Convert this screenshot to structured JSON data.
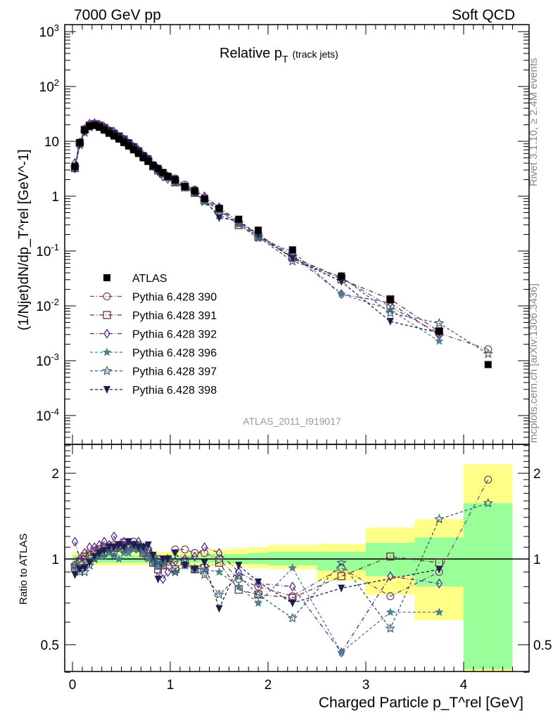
{
  "header": {
    "left": "7000 GeV pp",
    "right": "Soft QCD"
  },
  "side": {
    "rivet": "Rivet 3.1.10, ≥ 2.4M events",
    "mcplots": "mcplots.cern.ch [arXiv:1306.3436]"
  },
  "chart_data": {
    "type": "scatter",
    "title": "Relative p_T (track jets)",
    "title_main": "Relative p",
    "title_sub": "T",
    "title_small": "(track jets)",
    "xlabel": "Charged Particle p_T^rel [GeV]",
    "ylabel": "(1/Njet)dN/dp_T^rel [GeV^-1]",
    "ratio_ylabel": "Ratio to ATLAS",
    "watermark": "ATLAS_2011_I919017",
    "xlim": [
      -0.1,
      4.6
    ],
    "ylim_log": [
      3e-05,
      1350
    ],
    "ratio_ylim": [
      0.4,
      2.53
    ],
    "x_ticks": [
      "0",
      "1",
      "2",
      "3",
      "4"
    ],
    "y_ticks": [
      "10^3",
      "10^2",
      "10",
      "1",
      "10^-1",
      "10^-2",
      "10^-3",
      "10^-4"
    ],
    "ratio_ticks": [
      "2",
      "1",
      "0.5"
    ],
    "legend_position": "middle-left",
    "x": [
      0.025,
      0.075,
      0.125,
      0.175,
      0.225,
      0.275,
      0.325,
      0.375,
      0.425,
      0.475,
      0.525,
      0.575,
      0.625,
      0.675,
      0.725,
      0.775,
      0.825,
      0.875,
      0.925,
      0.975,
      1.05,
      1.15,
      1.25,
      1.35,
      1.5,
      1.7,
      1.9,
      2.25,
      2.75,
      3.25,
      3.75,
      4.25
    ],
    "reference": {
      "name": "ATLAS",
      "color": "#000000",
      "values": [
        3.5,
        9.5,
        16,
        19,
        19.5,
        18,
        16,
        14,
        12.5,
        11,
        9.5,
        8.2,
        7,
        6,
        5,
        4.3,
        3.6,
        3.2,
        2.7,
        2.3,
        1.95,
        1.5,
        1.25,
        0.9,
        0.6,
        0.38,
        0.24,
        0.105,
        0.035,
        0.013,
        0.0035,
        0.00085
      ]
    },
    "series": [
      {
        "name": "Pythia 6.428 390",
        "color": "#7a4a6a",
        "marker": "circle",
        "dash": "6,3,1,3",
        "ratio": [
          0.95,
          0.97,
          1.0,
          1.02,
          1.05,
          1.08,
          1.1,
          1.1,
          1.12,
          1.1,
          1.12,
          1.1,
          1.15,
          1.12,
          1.1,
          1.08,
          1.02,
          1.0,
          0.97,
          1.0,
          1.08,
          1.08,
          1.05,
          1.05,
          1.0,
          0.85,
          0.8,
          0.74,
          0.93,
          0.74,
          0.9,
          1.9
        ]
      },
      {
        "name": "Pythia 6.428 391",
        "color": "#6a3040",
        "marker": "square",
        "dash": "6,3,1,3",
        "ratio": [
          0.93,
          0.98,
          1.02,
          1.03,
          1.06,
          1.08,
          1.1,
          1.1,
          1.1,
          1.12,
          1.14,
          1.1,
          1.12,
          1.1,
          1.05,
          1.02,
          0.97,
          0.92,
          0.95,
          0.98,
          0.92,
          0.98,
          0.92,
          0.93,
          0.97,
          0.78,
          0.75,
          0.73,
          0.87,
          1.02,
          0.97,
          null
        ]
      },
      {
        "name": "Pythia 6.428 392",
        "color": "#5a2a8a",
        "marker": "diamond",
        "dash": "6,3,1,3",
        "ratio": [
          1.15,
          1.0,
          1.05,
          1.1,
          1.1,
          1.12,
          1.15,
          1.12,
          1.2,
          1.1,
          1.15,
          1.12,
          1.1,
          1.15,
          1.05,
          1.08,
          0.98,
          0.95,
          0.85,
          0.9,
          0.98,
          1.0,
          1.02,
          1.1,
          1.05,
          0.9,
          0.82,
          0.8,
          0.47,
          0.87,
          0.82,
          null
        ]
      },
      {
        "name": "Pythia 6.428 396",
        "color": "#4a8090",
        "marker": "star-small",
        "dash": "4,3",
        "ratio": [
          0.93,
          0.92,
          0.95,
          0.98,
          1.0,
          1.02,
          1.02,
          1.05,
          1.03,
          1.0,
          1.05,
          1.05,
          1.08,
          1.1,
          1.05,
          1.0,
          0.97,
          0.95,
          0.97,
          1.0,
          0.9,
          0.95,
          0.93,
          0.92,
          0.9,
          0.8,
          0.7,
          0.93,
          0.47,
          0.65,
          0.65,
          null
        ]
      },
      {
        "name": "Pythia 6.428 397",
        "color": "#3a5a70",
        "marker": "star",
        "dash": "4,3",
        "ratio": [
          0.95,
          0.9,
          0.9,
          0.95,
          1.0,
          1.05,
          1.05,
          1.08,
          1.05,
          1.1,
          1.08,
          1.1,
          1.12,
          1.08,
          1.1,
          1.05,
          1.0,
          0.98,
          0.95,
          1.0,
          0.9,
          0.95,
          0.92,
          0.88,
          0.75,
          0.87,
          0.75,
          0.62,
          0.97,
          0.57,
          1.38,
          1.57
        ]
      },
      {
        "name": "Pythia 6.428 398",
        "color": "#1e1e50",
        "marker": "triangle-down",
        "dash": "4,3",
        "ratio": [
          0.88,
          0.92,
          0.93,
          0.97,
          1.02,
          1.05,
          1.07,
          1.1,
          1.1,
          1.12,
          1.1,
          1.15,
          1.12,
          1.1,
          1.1,
          1.12,
          1.03,
          0.85,
          1.0,
          1.0,
          1.05,
          0.95,
          0.92,
          0.97,
          0.67,
          0.95,
          0.83,
          0.7,
          0.79,
          0.4,
          0.92,
          null
        ]
      }
    ],
    "uncertainty_bands": {
      "edges": [
        0,
        1.4,
        1.6,
        1.8,
        2.0,
        2.5,
        3.0,
        3.5,
        4.0,
        4.5
      ],
      "total_color": "#ffff88",
      "stat_color": "#99ff99",
      "total_low": [
        0.95,
        0.95,
        0.94,
        0.93,
        0.92,
        0.84,
        0.75,
        0.61,
        0.36
      ],
      "total_high": [
        1.06,
        1.08,
        1.09,
        1.1,
        1.12,
        1.13,
        1.29,
        1.38,
        2.15
      ],
      "stat_low": [
        0.97,
        0.97,
        0.96,
        0.96,
        0.95,
        0.91,
        0.87,
        0.8,
        0.41
      ],
      "stat_high": [
        1.03,
        1.04,
        1.04,
        1.05,
        1.06,
        1.06,
        1.14,
        1.19,
        1.57
      ]
    }
  }
}
